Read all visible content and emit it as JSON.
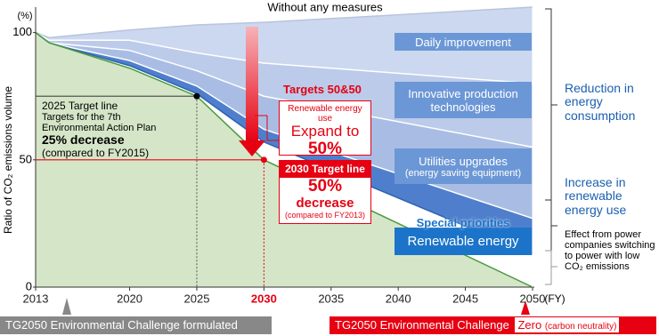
{
  "chart_data": {
    "type": "area",
    "x": [
      2013,
      2014,
      2020,
      2025,
      2030,
      2050
    ],
    "xlim": [
      2013,
      2050
    ],
    "xticks": [
      2013,
      2020,
      2025,
      2030,
      2035,
      2040,
      2045,
      2050
    ],
    "ylim": [
      0,
      110
    ],
    "yticks": [
      0,
      50,
      100
    ],
    "x_unit": "(FY)",
    "y_unit": "(%)",
    "y_label": "Ratio of CO₂ emissions volume",
    "series": [
      {
        "name": "Without any measures",
        "color": "#b8c4dc",
        "values": [
          100,
          98,
          101,
          103,
          104,
          110
        ]
      },
      {
        "name": "Daily improvement",
        "color": "#ccd8f0",
        "values": [
          100,
          97,
          97,
          92,
          88,
          80
        ]
      },
      {
        "name": "Innovative production technologies",
        "color": "#bccbea",
        "values": [
          100,
          96,
          93,
          85,
          75,
          55
        ]
      },
      {
        "name": "Utilities upgrades",
        "sublabel": "(energy saving equipment)",
        "color": "#a9bde4",
        "values": [
          100,
          96,
          89,
          79,
          62,
          27
        ]
      },
      {
        "name": "Renewable energy",
        "tag": "Special priorities",
        "color": "#4f7fcc",
        "values": [
          100,
          96,
          87,
          76,
          57,
          13
        ]
      },
      {
        "color": "#d5e6c8",
        "values": [
          100,
          96,
          86,
          75,
          50,
          0
        ]
      }
    ],
    "targets": [
      {
        "x": 2025,
        "y": 75
      },
      {
        "x": 2030,
        "y": 50
      }
    ],
    "highlight_color": "#e60012",
    "brackets": [
      "Reduction in energy consumption",
      "Increase in renewable energy use",
      "Effect from power companies switching to power with low CO₂ emissions"
    ],
    "target_2025": [
      "2025 Target line",
      "Targets for the 7th Environmental Action Plan",
      "25% decrease",
      "(compared to FY2015)"
    ],
    "targets_heading": "Targets 50&50",
    "renewable_box": [
      "Renewable energy use",
      "Expand to",
      "50%"
    ],
    "target_2030": [
      "2030 Target line",
      "50%",
      "decrease",
      "(compared to FY2013)"
    ],
    "banner_left": "TG2050 Environmental Challenge formulated",
    "banner_right": [
      "TG2050 Environmental Challenge",
      "Zero",
      "(carbon neutrality)"
    ]
  }
}
